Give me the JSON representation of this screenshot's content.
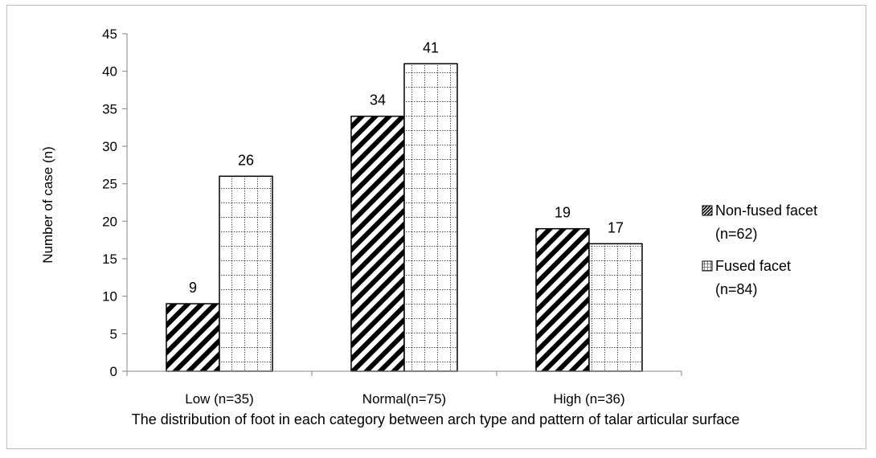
{
  "chart_data": {
    "type": "bar",
    "title": "",
    "caption": "The distribution of foot in each category between arch type and pattern of talar articular surface",
    "xlabel": "",
    "ylabel": "Number of case (n)",
    "ylim": [
      0,
      45
    ],
    "yticks": [
      0,
      5,
      10,
      15,
      20,
      25,
      30,
      35,
      40,
      45
    ],
    "categories": [
      "Low (n=35)",
      "Normal(n=75)",
      "High (n=36)"
    ],
    "series": [
      {
        "name": "Non-fused facet (n=62)",
        "legend_lines": [
          "Non-fused facet",
          "(n=62)"
        ],
        "pattern": "diagonal-stripes",
        "values": [
          9,
          34,
          19
        ]
      },
      {
        "name": "Fused facet (n=84)",
        "legend_lines": [
          "Fused facet",
          "(n=84)"
        ],
        "pattern": "dotted-grid",
        "values": [
          26,
          41,
          17
        ]
      }
    ],
    "grid": false,
    "legend_position": "right",
    "data_labels": true
  }
}
